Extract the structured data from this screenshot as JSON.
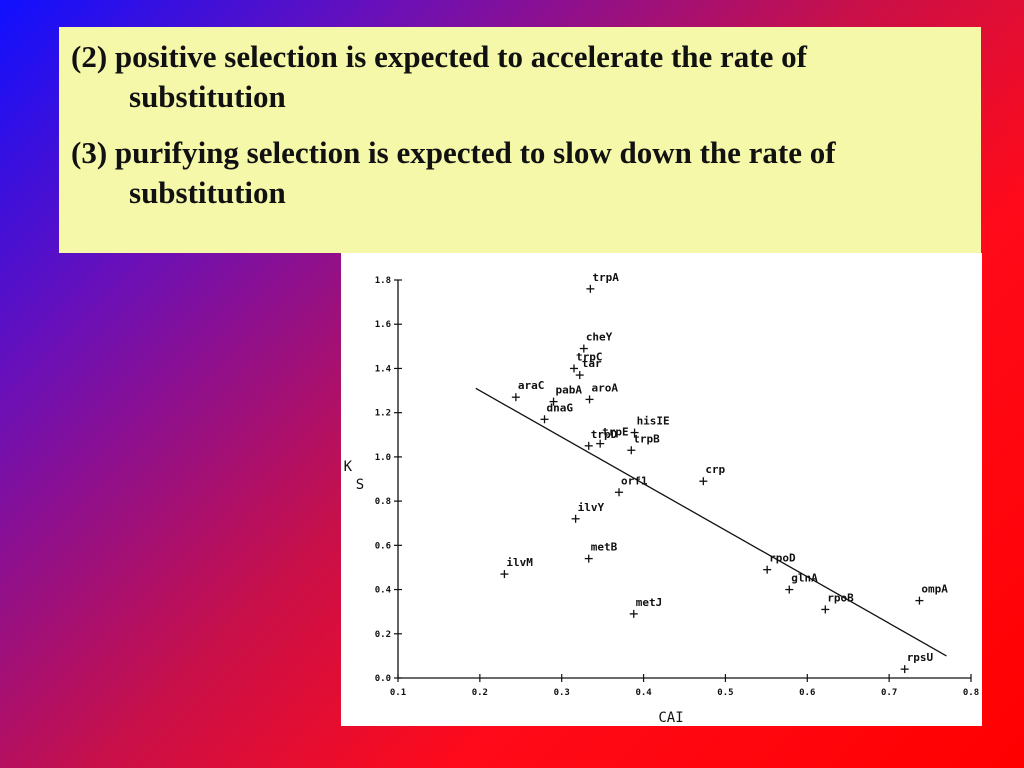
{
  "slide": {
    "points": [
      "(2) positive selection is expected to accelerate the rate of substitution",
      "(3) purifying selection is expected to slow down the rate of substitution"
    ]
  },
  "chart_data": {
    "type": "scatter",
    "title": "",
    "xlabel": "CAI",
    "ylabel": "K S",
    "xlim": [
      0.1,
      0.8
    ],
    "ylim": [
      0.0,
      1.8
    ],
    "x_ticks": [
      0.1,
      0.2,
      0.3,
      0.4,
      0.5,
      0.6,
      0.7,
      0.8
    ],
    "x_tick_labels": [
      "0.1",
      "0.2",
      "0.3",
      "0.4",
      "0.5",
      "0.6",
      "0.7",
      "0.8"
    ],
    "y_ticks": [
      0.0,
      0.2,
      0.4,
      0.6,
      0.8,
      1.0,
      1.2,
      1.4,
      1.6,
      1.8
    ],
    "y_tick_labels": [
      "0.0",
      "0.2",
      "0.4",
      "0.6",
      "0.8",
      "1.0",
      "1.2",
      "1.4",
      "1.6",
      "1.8"
    ],
    "marker": "+",
    "points": [
      {
        "label": "trpA",
        "x": 0.335,
        "y": 1.76
      },
      {
        "label": "cheY",
        "x": 0.327,
        "y": 1.49
      },
      {
        "label": "trpC",
        "x": 0.315,
        "y": 1.4
      },
      {
        "label": "tar",
        "x": 0.322,
        "y": 1.37
      },
      {
        "label": "araC",
        "x": 0.244,
        "y": 1.27
      },
      {
        "label": "pabA",
        "x": 0.29,
        "y": 1.25
      },
      {
        "label": "aroA",
        "x": 0.334,
        "y": 1.26
      },
      {
        "label": "dnaG",
        "x": 0.279,
        "y": 1.17
      },
      {
        "label": "hisIE",
        "x": 0.389,
        "y": 1.11
      },
      {
        "label": "trpE",
        "x": 0.347,
        "y": 1.06
      },
      {
        "label": "trpD",
        "x": 0.333,
        "y": 1.05
      },
      {
        "label": "trpB",
        "x": 0.385,
        "y": 1.03
      },
      {
        "label": "crp",
        "x": 0.473,
        "y": 0.89
      },
      {
        "label": "orf1",
        "x": 0.37,
        "y": 0.84
      },
      {
        "label": "ilvY",
        "x": 0.317,
        "y": 0.72
      },
      {
        "label": "metB",
        "x": 0.333,
        "y": 0.54
      },
      {
        "label": "ilvM",
        "x": 0.23,
        "y": 0.47
      },
      {
        "label": "rpoD",
        "x": 0.551,
        "y": 0.49
      },
      {
        "label": "glnA",
        "x": 0.578,
        "y": 0.4
      },
      {
        "label": "rpoB",
        "x": 0.622,
        "y": 0.31
      },
      {
        "label": "metJ",
        "x": 0.388,
        "y": 0.29
      },
      {
        "label": "ompA",
        "x": 0.737,
        "y": 0.35
      },
      {
        "label": "rpsU",
        "x": 0.719,
        "y": 0.04
      }
    ],
    "regression_line": {
      "x": [
        0.195,
        0.77
      ],
      "y": [
        1.31,
        0.1
      ]
    }
  }
}
